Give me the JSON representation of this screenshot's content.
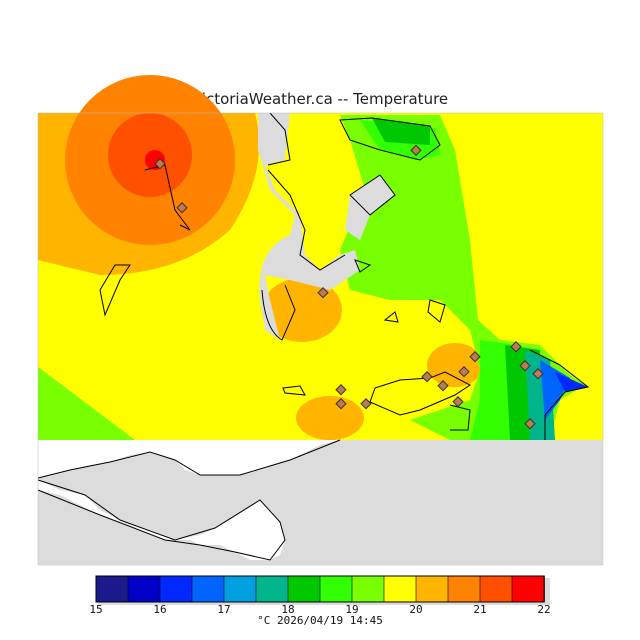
{
  "title": "VictoriaWeather.ca -- Temperature",
  "legend": {
    "ticks": [
      "15",
      "16",
      "17",
      "18",
      "19",
      "20",
      "21",
      "22"
    ],
    "colors": [
      "#1a1a8c",
      "#0000c8",
      "#0028ff",
      "#0064ff",
      "#00a0e0",
      "#00b48c",
      "#00c800",
      "#32ff00",
      "#78ff00",
      "#ffff00",
      "#ffb400",
      "#ff8200",
      "#ff5000",
      "#ff0000"
    ]
  },
  "footer": "°C  2026/04/19 14:45",
  "colors": {
    "land_mask": "#dcdcdc",
    "background": "#ffffff"
  }
}
